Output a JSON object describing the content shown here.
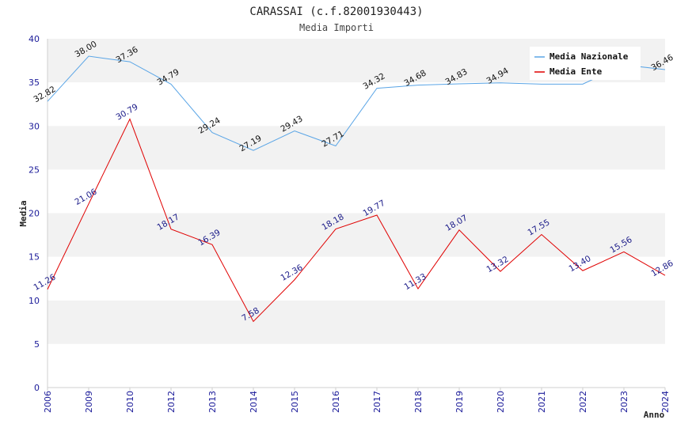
{
  "chart_data": {
    "type": "line",
    "title": "CARASSAI (c.f.82001930443)",
    "subtitle": "Media Importi",
    "xlabel": "Anno",
    "ylabel": "Media",
    "ylim": [
      0,
      40
    ],
    "yticks": [
      0,
      5,
      10,
      15,
      20,
      25,
      30,
      35,
      40
    ],
    "grid": true,
    "legend_position": "top-right",
    "categories": [
      "2006",
      "2009",
      "2010",
      "2012",
      "2013",
      "2014",
      "2015",
      "2016",
      "2017",
      "2018",
      "2019",
      "2020",
      "2021",
      "2022",
      "2023",
      "2024"
    ],
    "series": [
      {
        "name": "Media Nazionale",
        "color": "#5aa5e6",
        "label_color": "#111111",
        "values": [
          32.82,
          38.0,
          37.36,
          34.79,
          29.24,
          27.19,
          29.43,
          27.71,
          34.32,
          34.68,
          34.83,
          34.94,
          34.8,
          34.8,
          37.0,
          36.46
        ],
        "labels": [
          "32.82",
          "38.00",
          "37.36",
          "34.79",
          "29.24",
          "27.19",
          "29.43",
          "27.71",
          "34.32",
          "34.68",
          "34.83",
          "34.94",
          "",
          "",
          "",
          "36.46"
        ]
      },
      {
        "name": "Media Ente",
        "color": "#e00000",
        "label_color": "#1a1a88",
        "values": [
          11.26,
          21.06,
          30.79,
          18.17,
          16.39,
          7.58,
          12.36,
          18.18,
          19.77,
          11.33,
          18.07,
          13.32,
          17.55,
          13.4,
          15.56,
          12.86
        ],
        "labels": [
          "11.26",
          "21.06",
          "30.79",
          "18.17",
          "16.39",
          "7.58",
          "12.36",
          "18.18",
          "19.77",
          "11.33",
          "18.07",
          "13.32",
          "17.55",
          "13.40",
          "15.56",
          "12.86"
        ]
      }
    ]
  }
}
